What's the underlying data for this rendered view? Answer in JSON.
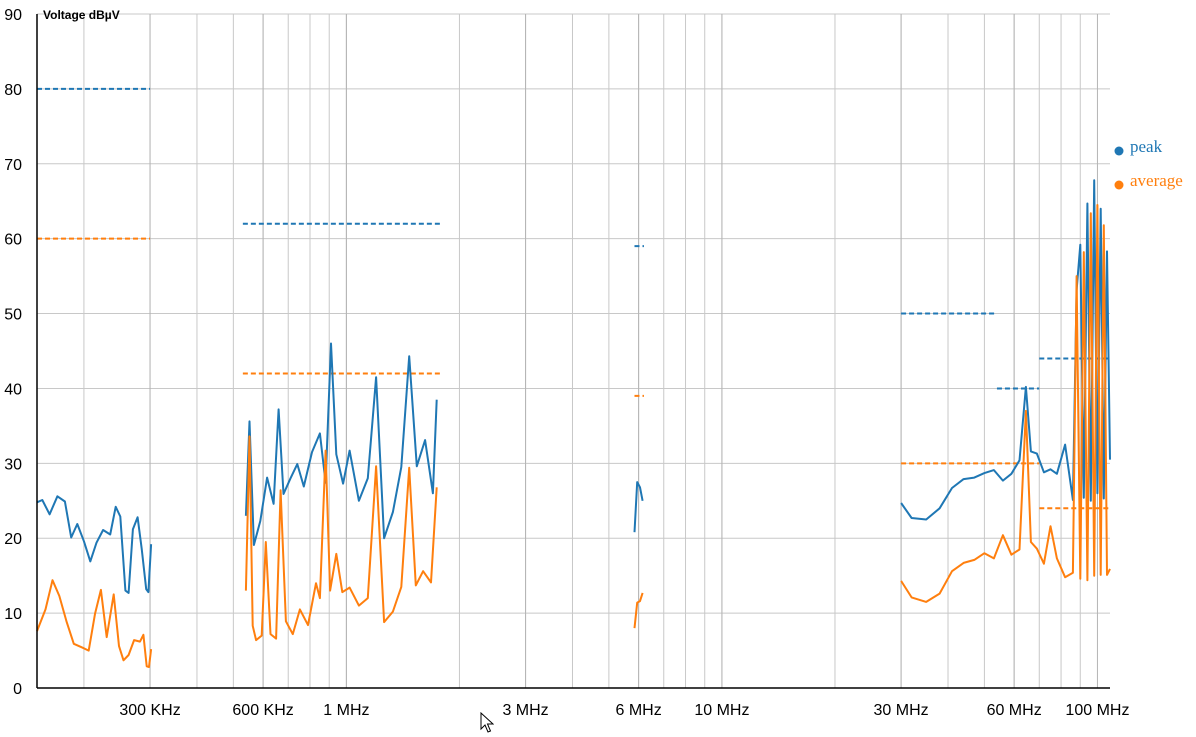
{
  "chart_data": {
    "type": "line",
    "ylabel": "Voltage dBµV",
    "xlabel": "",
    "x_scale": "log",
    "xlim": [
      150000,
      108000000
    ],
    "ylim": [
      0,
      90
    ],
    "y_ticks": [
      0,
      10,
      20,
      30,
      40,
      50,
      60,
      70,
      80,
      90
    ],
    "x_ticks": [
      {
        "value": 300000,
        "label": "300 KHz"
      },
      {
        "value": 600000,
        "label": "600 KHz"
      },
      {
        "value": 1000000,
        "label": "1 MHz"
      },
      {
        "value": 3000000,
        "label": "3 MHz"
      },
      {
        "value": 6000000,
        "label": "6 MHz"
      },
      {
        "value": 10000000,
        "label": "10 MHz"
      },
      {
        "value": 30000000,
        "label": "30 MHz"
      },
      {
        "value": 60000000,
        "label": "60 MHz"
      },
      {
        "value": 100000000,
        "label": "100 MHz"
      }
    ],
    "grid": true,
    "legend_position": "right",
    "colors": {
      "peak": "#1f77b4",
      "average": "#ff7f0e"
    },
    "series": [
      {
        "name": "peak",
        "color": "#1f77b4",
        "segments": [
          [
            [
              150000,
              24.8
            ],
            [
              155000,
              25.1
            ],
            [
              162000,
              23.2
            ],
            [
              170000,
              25.6
            ],
            [
              178000,
              24.9
            ],
            [
              185000,
              20.1
            ],
            [
              192000,
              21.9
            ],
            [
              200000,
              19.6
            ],
            [
              208000,
              16.9
            ],
            [
              216000,
              19.4
            ],
            [
              225000,
              21.1
            ],
            [
              235000,
              20.5
            ],
            [
              243000,
              24.2
            ],
            [
              250000,
              22.9
            ],
            [
              258000,
              13.0
            ],
            [
              263000,
              12.7
            ],
            [
              270000,
              21.2
            ],
            [
              278000,
              22.8
            ],
            [
              285000,
              18.6
            ],
            [
              293000,
              13.2
            ],
            [
              297000,
              12.8
            ],
            [
              302000,
              19.2
            ]
          ],
          [
            [
              540000,
              23.0
            ],
            [
              552000,
              35.6
            ],
            [
              567000,
              19.1
            ],
            [
              590000,
              22.3
            ],
            [
              615000,
              28.1
            ],
            [
              640000,
              24.6
            ],
            [
              660000,
              37.2
            ],
            [
              680000,
              25.9
            ],
            [
              710000,
              28.0
            ],
            [
              740000,
              29.9
            ],
            [
              770000,
              26.9
            ],
            [
              810000,
              31.5
            ],
            [
              850000,
              34.0
            ],
            [
              880000,
              27.4
            ],
            [
              910000,
              46.0
            ],
            [
              940000,
              31.2
            ],
            [
              980000,
              27.3
            ],
            [
              1020000,
              31.7
            ],
            [
              1080000,
              25.0
            ],
            [
              1140000,
              28.0
            ],
            [
              1200000,
              41.5
            ],
            [
              1260000,
              20.0
            ],
            [
              1330000,
              23.5
            ],
            [
              1400000,
              29.5
            ],
            [
              1470000,
              44.3
            ],
            [
              1540000,
              29.6
            ],
            [
              1620000,
              33.1
            ],
            [
              1700000,
              26.0
            ],
            [
              1740000,
              38.5
            ]
          ],
          [
            [
              5850000,
              20.8
            ],
            [
              5950000,
              27.5
            ],
            [
              6050000,
              26.8
            ],
            [
              6150000,
              25.0
            ]
          ],
          [
            [
              30000000,
              24.7
            ],
            [
              32000000,
              22.7
            ],
            [
              35000000,
              22.5
            ],
            [
              38000000,
              24.0
            ],
            [
              41000000,
              26.7
            ],
            [
              44000000,
              27.9
            ],
            [
              47000000,
              28.1
            ],
            [
              50000000,
              28.7
            ],
            [
              53000000,
              29.1
            ],
            [
              56000000,
              27.7
            ],
            [
              59000000,
              28.6
            ],
            [
              62000000,
              30.4
            ],
            [
              64500000,
              40.2
            ],
            [
              66500000,
              31.6
            ],
            [
              69000000,
              31.3
            ],
            [
              72000000,
              28.8
            ],
            [
              75000000,
              29.2
            ],
            [
              78000000,
              28.6
            ],
            [
              82000000,
              32.5
            ],
            [
              86000000,
              25.1
            ],
            [
              88000000,
              53.1
            ],
            [
              90000000,
              59.2
            ],
            [
              92000000,
              25.4
            ],
            [
              94000000,
              64.7
            ],
            [
              96000000,
              25.0
            ],
            [
              98000000,
              67.8
            ],
            [
              100000000,
              26.0
            ],
            [
              102000000,
              64.0
            ],
            [
              104000000,
              25.3
            ],
            [
              106000000,
              58.3
            ],
            [
              108000000,
              30.5
            ]
          ]
        ]
      },
      {
        "name": "average",
        "color": "#ff7f0e",
        "segments": [
          [
            [
              150000,
              7.6
            ],
            [
              158000,
              10.5
            ],
            [
              165000,
              14.4
            ],
            [
              172000,
              12.3
            ],
            [
              180000,
              8.8
            ],
            [
              188000,
              5.9
            ],
            [
              198000,
              5.4
            ],
            [
              206000,
              5.0
            ],
            [
              214000,
              9.9
            ],
            [
              222000,
              13.1
            ],
            [
              230000,
              6.8
            ],
            [
              240000,
              12.5
            ],
            [
              248000,
              5.6
            ],
            [
              255000,
              3.7
            ],
            [
              263000,
              4.4
            ],
            [
              272000,
              6.4
            ],
            [
              282000,
              6.2
            ],
            [
              288000,
              7.1
            ],
            [
              294000,
              2.9
            ],
            [
              298000,
              2.8
            ],
            [
              302000,
              5.2
            ]
          ],
          [
            [
              540000,
              13.0
            ],
            [
              552000,
              33.6
            ],
            [
              563000,
              8.3
            ],
            [
              575000,
              6.4
            ],
            [
              595000,
              7.0
            ],
            [
              610000,
              19.5
            ],
            [
              628000,
              7.2
            ],
            [
              650000,
              6.6
            ],
            [
              668000,
              26.4
            ],
            [
              690000,
              8.9
            ],
            [
              720000,
              7.2
            ],
            [
              752000,
              10.5
            ],
            [
              790000,
              8.4
            ],
            [
              830000,
              14.0
            ],
            [
              850000,
              12.0
            ],
            [
              880000,
              31.7
            ],
            [
              905000,
              13.0
            ],
            [
              940000,
              17.9
            ],
            [
              975000,
              12.8
            ],
            [
              1020000,
              13.4
            ],
            [
              1080000,
              11.0
            ],
            [
              1140000,
              12.0
            ],
            [
              1200000,
              29.6
            ],
            [
              1260000,
              8.8
            ],
            [
              1330000,
              10.2
            ],
            [
              1400000,
              13.5
            ],
            [
              1470000,
              29.4
            ],
            [
              1530000,
              13.7
            ],
            [
              1600000,
              15.6
            ],
            [
              1680000,
              14.1
            ],
            [
              1740000,
              26.8
            ]
          ],
          [
            [
              5850000,
              8.0
            ],
            [
              5950000,
              11.4
            ],
            [
              6050000,
              11.6
            ],
            [
              6150000,
              12.7
            ]
          ],
          [
            [
              30000000,
              14.3
            ],
            [
              32000000,
              12.1
            ],
            [
              35000000,
              11.5
            ],
            [
              38000000,
              12.6
            ],
            [
              41000000,
              15.6
            ],
            [
              44000000,
              16.7
            ],
            [
              47000000,
              17.1
            ],
            [
              50000000,
              18.0
            ],
            [
              53000000,
              17.3
            ],
            [
              56000000,
              20.4
            ],
            [
              59000000,
              17.8
            ],
            [
              62000000,
              18.5
            ],
            [
              64500000,
              37.0
            ],
            [
              66500000,
              19.5
            ],
            [
              69000000,
              18.6
            ],
            [
              72000000,
              16.6
            ],
            [
              75000000,
              21.6
            ],
            [
              78000000,
              17.3
            ],
            [
              82000000,
              14.8
            ],
            [
              86000000,
              15.4
            ],
            [
              88000000,
              55.0
            ],
            [
              90000000,
              14.6
            ],
            [
              92000000,
              58.2
            ],
            [
              94000000,
              14.4
            ],
            [
              96000000,
              63.4
            ],
            [
              98000000,
              15.0
            ],
            [
              100000000,
              64.5
            ],
            [
              102000000,
              15.1
            ],
            [
              104000000,
              61.8
            ],
            [
              106000000,
              15.1
            ],
            [
              108000000,
              15.9
            ]
          ]
        ]
      }
    ],
    "limits": [
      {
        "series": "peak",
        "from": 150000,
        "to": 300000,
        "y": 80
      },
      {
        "series": "average",
        "from": 150000,
        "to": 300000,
        "y": 60
      },
      {
        "series": "peak",
        "from": 530000,
        "to": 1800000,
        "y": 62
      },
      {
        "series": "average",
        "from": 530000,
        "to": 1800000,
        "y": 42
      },
      {
        "series": "peak",
        "from": 5850000,
        "to": 6200000,
        "y": 59
      },
      {
        "series": "average",
        "from": 5850000,
        "to": 6200000,
        "y": 39
      },
      {
        "series": "peak",
        "from": 30000000,
        "to": 54000000,
        "y": 50
      },
      {
        "series": "average",
        "from": 30000000,
        "to": 70000000,
        "y": 30
      },
      {
        "series": "peak",
        "from": 54000000,
        "to": 70000000,
        "y": 40
      },
      {
        "series": "peak",
        "from": 70000000,
        "to": 108000000,
        "y": 44
      },
      {
        "series": "average",
        "from": 70000000,
        "to": 108000000,
        "y": 24
      }
    ]
  }
}
